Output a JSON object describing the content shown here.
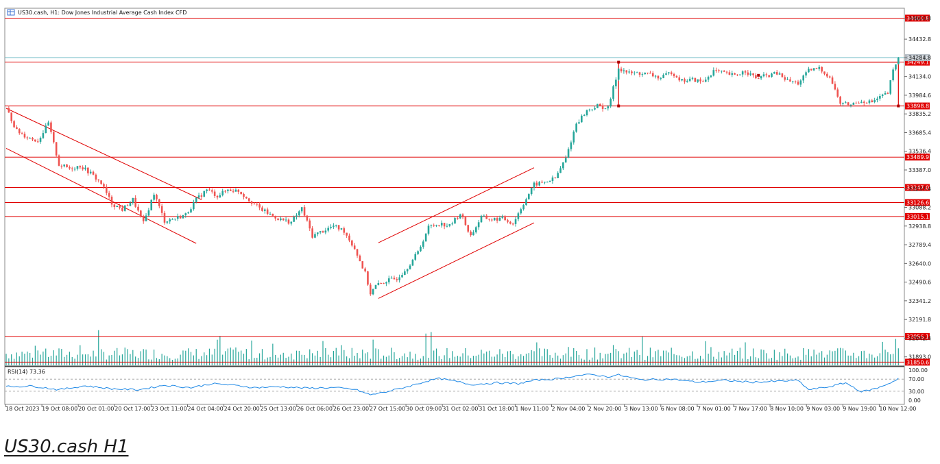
{
  "chart_data": {
    "type": "candlestick",
    "title": "US30.cash, H1:  Dow Jones Industrial Average Cash Index CFD",
    "symbol": "US30.cash",
    "timeframe": "H1",
    "price_ticks": [
      "34600.8",
      "34432.8",
      "34284.8",
      "34134.0",
      "33984.6",
      "33835.2",
      "33685.4",
      "33536.4",
      "33387.0",
      "33237.4",
      "33088.2",
      "32938.8",
      "32789.4",
      "32640.0",
      "32490.6",
      "32341.2",
      "32191.8",
      "32042.4",
      "31893.0"
    ],
    "price_range": [
      31820,
      34680
    ],
    "level_lines": [
      {
        "label": "34600.8",
        "value": 34600.8
      },
      {
        "label": "34249.1",
        "value": 34249.1
      },
      {
        "label": "33898.8",
        "value": 33898.8
      },
      {
        "label": "33489.9",
        "value": 33489.9
      },
      {
        "label": "33247.0",
        "value": 33247.0
      },
      {
        "label": "33126.6",
        "value": 33126.6
      },
      {
        "label": "33015.1",
        "value": 33015.1
      },
      {
        "label": "32056.1",
        "value": 32056.1
      },
      {
        "label": "31850.6",
        "value": 31850.6
      }
    ],
    "current_price": {
      "label": "34284.8",
      "value": 34284.8
    },
    "time_labels": [
      "18 Oct 2023",
      "19 Oct 08:00",
      "20 Oct 01:00",
      "20 Oct 17:00",
      "23 Oct 11:00",
      "24 Oct 04:00",
      "24 Oct 20:00",
      "25 Oct 13:00",
      "26 Oct 06:00",
      "26 Oct 23:00",
      "27 Oct 15:00",
      "30 Oct 09:00",
      "31 Oct 02:00",
      "31 Oct 18:00",
      "1 Nov 11:00",
      "2 Nov 04:00",
      "2 Nov 20:00",
      "3 Nov 13:00",
      "6 Nov 08:00",
      "7 Nov 01:00",
      "7 Nov 17:00",
      "8 Nov 10:00",
      "9 Nov 03:00",
      "9 Nov 19:00",
      "10 Nov 12:00"
    ],
    "anchors": [
      {
        "t": 0,
        "p": 33880
      },
      {
        "t": 4,
        "p": 33700
      },
      {
        "t": 8,
        "p": 33650
      },
      {
        "t": 12,
        "p": 33620
      },
      {
        "t": 16,
        "p": 33760
      },
      {
        "t": 20,
        "p": 33430
      },
      {
        "t": 24,
        "p": 33400
      },
      {
        "t": 28,
        "p": 33420
      },
      {
        "t": 32,
        "p": 33360
      },
      {
        "t": 36,
        "p": 33280
      },
      {
        "t": 40,
        "p": 33120
      },
      {
        "t": 44,
        "p": 33070
      },
      {
        "t": 48,
        "p": 33150
      },
      {
        "t": 52,
        "p": 32960
      },
      {
        "t": 56,
        "p": 33200
      },
      {
        "t": 60,
        "p": 32980
      },
      {
        "t": 64,
        "p": 33000
      },
      {
        "t": 68,
        "p": 33030
      },
      {
        "t": 72,
        "p": 33150
      },
      {
        "t": 76,
        "p": 33230
      },
      {
        "t": 80,
        "p": 33180
      },
      {
        "t": 84,
        "p": 33230
      },
      {
        "t": 88,
        "p": 33220
      },
      {
        "t": 92,
        "p": 33150
      },
      {
        "t": 96,
        "p": 33080
      },
      {
        "t": 100,
        "p": 33030
      },
      {
        "t": 104,
        "p": 32990
      },
      {
        "t": 108,
        "p": 32970
      },
      {
        "t": 112,
        "p": 33080
      },
      {
        "t": 116,
        "p": 32860
      },
      {
        "t": 120,
        "p": 32900
      },
      {
        "t": 124,
        "p": 32940
      },
      {
        "t": 128,
        "p": 32900
      },
      {
        "t": 132,
        "p": 32760
      },
      {
        "t": 136,
        "p": 32560
      },
      {
        "t": 138,
        "p": 32400
      },
      {
        "t": 140,
        "p": 32460
      },
      {
        "t": 144,
        "p": 32500
      },
      {
        "t": 148,
        "p": 32520
      },
      {
        "t": 152,
        "p": 32610
      },
      {
        "t": 156,
        "p": 32730
      },
      {
        "t": 160,
        "p": 32930
      },
      {
        "t": 164,
        "p": 32960
      },
      {
        "t": 168,
        "p": 32940
      },
      {
        "t": 172,
        "p": 33040
      },
      {
        "t": 176,
        "p": 32860
      },
      {
        "t": 180,
        "p": 33010
      },
      {
        "t": 184,
        "p": 32990
      },
      {
        "t": 188,
        "p": 33000
      },
      {
        "t": 192,
        "p": 32960
      },
      {
        "t": 196,
        "p": 33120
      },
      {
        "t": 200,
        "p": 33270
      },
      {
        "t": 204,
        "p": 33290
      },
      {
        "t": 208,
        "p": 33320
      },
      {
        "t": 212,
        "p": 33480
      },
      {
        "t": 216,
        "p": 33760
      },
      {
        "t": 220,
        "p": 33860
      },
      {
        "t": 224,
        "p": 33900
      },
      {
        "t": 228,
        "p": 33880
      },
      {
        "t": 232,
        "p": 34200
      },
      {
        "t": 236,
        "p": 34160
      },
      {
        "t": 240,
        "p": 34160
      },
      {
        "t": 244,
        "p": 34150
      },
      {
        "t": 248,
        "p": 34120
      },
      {
        "t": 252,
        "p": 34170
      },
      {
        "t": 256,
        "p": 34100
      },
      {
        "t": 260,
        "p": 34110
      },
      {
        "t": 264,
        "p": 34090
      },
      {
        "t": 268,
        "p": 34180
      },
      {
        "t": 272,
        "p": 34160
      },
      {
        "t": 276,
        "p": 34140
      },
      {
        "t": 280,
        "p": 34180
      },
      {
        "t": 284,
        "p": 34120
      },
      {
        "t": 288,
        "p": 34140
      },
      {
        "t": 292,
        "p": 34160
      },
      {
        "t": 296,
        "p": 34100
      },
      {
        "t": 300,
        "p": 34080
      },
      {
        "t": 304,
        "p": 34180
      },
      {
        "t": 308,
        "p": 34200
      },
      {
        "t": 312,
        "p": 34130
      },
      {
        "t": 316,
        "p": 33920
      },
      {
        "t": 320,
        "p": 33910
      },
      {
        "t": 324,
        "p": 33940
      },
      {
        "t": 328,
        "p": 33930
      },
      {
        "t": 332,
        "p": 33980
      },
      {
        "t": 334,
        "p": 34000
      },
      {
        "t": 336,
        "p": 34180
      },
      {
        "t": 338,
        "p": 34284.8
      }
    ],
    "channels": [
      {
        "name": "down-channel-upper",
        "from": {
          "t": 0,
          "p": 33880
        },
        "to": {
          "t": 74,
          "p": 33150
        }
      },
      {
        "name": "down-channel-lower",
        "from": {
          "t": 0,
          "p": 33560
        },
        "to": {
          "t": 72,
          "p": 32800
        }
      },
      {
        "name": "up-channel-upper",
        "from": {
          "t": 141,
          "p": 32805
        },
        "to": {
          "t": 200,
          "p": 33405
        }
      },
      {
        "name": "up-channel-lower",
        "from": {
          "t": 141,
          "p": 32360
        },
        "to": {
          "t": 200,
          "p": 32965
        }
      }
    ],
    "range_box": {
      "t_start": 232,
      "t_end": 338,
      "p_top": 34249.1,
      "p_bottom": 33898.8
    },
    "rsi": {
      "title": "RSI(14) 73.36",
      "ticks": [
        "100.00",
        "70.00",
        "30.00",
        "0.00"
      ],
      "levels": [
        70,
        30
      ],
      "range": [
        0,
        100
      ],
      "anchors": [
        {
          "t": 0,
          "v": 45
        },
        {
          "t": 10,
          "v": 47
        },
        {
          "t": 20,
          "v": 35
        },
        {
          "t": 30,
          "v": 48
        },
        {
          "t": 40,
          "v": 38
        },
        {
          "t": 50,
          "v": 35
        },
        {
          "t": 55,
          "v": 42
        },
        {
          "t": 60,
          "v": 50
        },
        {
          "t": 70,
          "v": 42
        },
        {
          "t": 78,
          "v": 55
        },
        {
          "t": 86,
          "v": 50
        },
        {
          "t": 94,
          "v": 42
        },
        {
          "t": 104,
          "v": 45
        },
        {
          "t": 114,
          "v": 40
        },
        {
          "t": 124,
          "v": 42
        },
        {
          "t": 132,
          "v": 36
        },
        {
          "t": 138,
          "v": 18
        },
        {
          "t": 144,
          "v": 28
        },
        {
          "t": 152,
          "v": 45
        },
        {
          "t": 160,
          "v": 65
        },
        {
          "t": 164,
          "v": 72
        },
        {
          "t": 172,
          "v": 60
        },
        {
          "t": 176,
          "v": 52
        },
        {
          "t": 186,
          "v": 58
        },
        {
          "t": 194,
          "v": 55
        },
        {
          "t": 200,
          "v": 66
        },
        {
          "t": 210,
          "v": 72
        },
        {
          "t": 216,
          "v": 82
        },
        {
          "t": 222,
          "v": 85
        },
        {
          "t": 228,
          "v": 78
        },
        {
          "t": 232,
          "v": 84
        },
        {
          "t": 240,
          "v": 68
        },
        {
          "t": 252,
          "v": 70
        },
        {
          "t": 262,
          "v": 60
        },
        {
          "t": 272,
          "v": 66
        },
        {
          "t": 282,
          "v": 60
        },
        {
          "t": 290,
          "v": 62
        },
        {
          "t": 300,
          "v": 66
        },
        {
          "t": 304,
          "v": 35
        },
        {
          "t": 312,
          "v": 45
        },
        {
          "t": 318,
          "v": 58
        },
        {
          "t": 324,
          "v": 28
        },
        {
          "t": 330,
          "v": 40
        },
        {
          "t": 336,
          "v": 62
        },
        {
          "t": 338,
          "v": 73.36
        }
      ]
    }
  },
  "caption": "US30.cash H1",
  "colors": {
    "bull": "#26a69a",
    "bear": "#ef5350",
    "level": "#e00000",
    "price_line": "#66b7c0",
    "rsi": "#1e88e5",
    "volume": "#26a69a"
  }
}
